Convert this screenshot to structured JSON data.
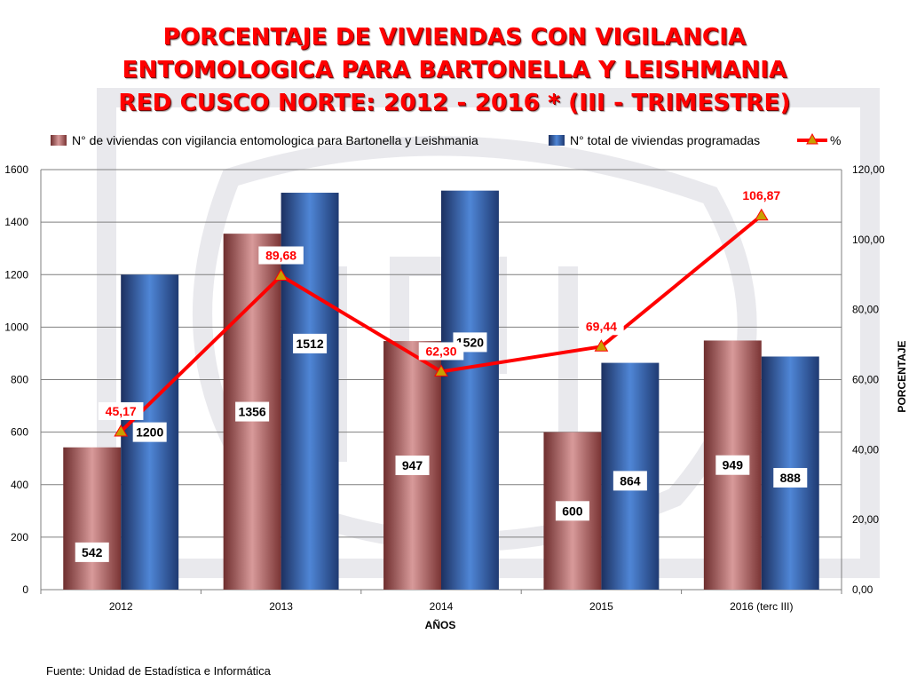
{
  "title_lines": [
    "PORCENTAJE DE VIVIENDAS CON VIGILANCIA",
    "ENTOMOLOGICA PARA BARTONELLA Y LEISHMANIA",
    "RED CUSCO NORTE: 2012 - 2016 * (III - TRIMESTRE)"
  ],
  "source": "Fuente: Unidad de Estadística e Informática",
  "colors": {
    "series_1": "#c07070",
    "series_2": "#3a6db8",
    "percent_line": "#ff0000",
    "percent_marker": "#c8a000"
  },
  "chart_data": {
    "type": "bar",
    "categories": [
      "2012",
      "2013",
      "2014",
      "2015",
      "2016 (terc III)"
    ],
    "series": [
      {
        "name": "N° de viviendas con vigilancia entomologica para Bartonella y Leishmania",
        "values": [
          542,
          1356,
          947,
          600,
          949
        ],
        "labels": [
          "542",
          "1356",
          "947",
          "600",
          "949"
        ]
      },
      {
        "name": "N° total de viviendas programadas",
        "values": [
          1200,
          1512,
          1520,
          864,
          888
        ],
        "labels": [
          "1200",
          "1512",
          "1520",
          "864",
          "888"
        ]
      },
      {
        "name": "%",
        "type": "line",
        "axis": "secondary",
        "values": [
          45.17,
          89.68,
          62.3,
          69.44,
          106.87
        ],
        "labels": [
          "45,17",
          "89,68",
          "62,30",
          "69,44",
          "106,87"
        ]
      }
    ],
    "xlabel": "AÑOS",
    "ylabel": "",
    "y2label": "PORCENTAJE",
    "ylim": [
      0,
      1600
    ],
    "y2lim": [
      0,
      120
    ],
    "yticks": [
      "0",
      "200",
      "400",
      "600",
      "800",
      "1000",
      "1200",
      "1400",
      "1600"
    ],
    "y2ticks": [
      "0,00",
      "20,00",
      "40,00",
      "60,00",
      "80,00",
      "100,00",
      "120,00"
    ],
    "grid": true,
    "legend": "top"
  }
}
